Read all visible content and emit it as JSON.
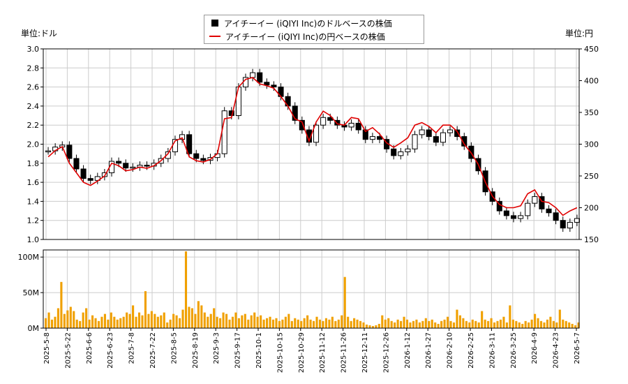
{
  "legend": {
    "usd_label": "アイチーイー (iQIYI Inc)のドルベースの株価",
    "jpy_label": "アイチーイー (iQIYI Inc)の円ベースの株価"
  },
  "units": {
    "left": "単位:ドル",
    "right": "単位:円"
  },
  "colors": {
    "candle": "#000000",
    "jpy_line": "#e00000",
    "volume": "#f0a000",
    "grid": "#cccccc"
  },
  "chart_data": {
    "type": "line",
    "price_axis": {
      "left_ticks": [
        "3.0",
        "2.8",
        "2.6",
        "2.4",
        "2.2",
        "2.0",
        "1.8",
        "1.6",
        "1.4",
        "1.2",
        "1.0"
      ],
      "right_ticks": [
        "450",
        "400",
        "350",
        "300",
        "250",
        "200",
        "150"
      ],
      "ylim_usd": [
        1.0,
        3.0
      ],
      "ylim_jpy": [
        150,
        450
      ]
    },
    "volume_axis": {
      "ticks": [
        "100M",
        "50M",
        "0M"
      ],
      "ylim": [
        0,
        110
      ]
    },
    "x_labels": [
      "2025-5-8",
      "2025-5-22",
      "2025-6-6",
      "2025-6-23",
      "2025-7-8",
      "2025-7-22",
      "2025-8-5",
      "2025-8-19",
      "2025-9-3",
      "2025-9-17",
      "2025-10-1",
      "2025-10-15",
      "2025-10-29",
      "2025-11-12",
      "2025-11-26",
      "2025-12-11",
      "2025-12-26",
      "2026-1-12",
      "2026-1-27",
      "2026-2-10",
      "2026-2-25",
      "2026-3-11",
      "2026-3-25",
      "2026-4-9",
      "2026-4-23",
      "2026-5-7"
    ],
    "usd_close": [
      1.93,
      1.97,
      1.99,
      1.85,
      1.74,
      1.64,
      1.62,
      1.66,
      1.7,
      1.82,
      1.8,
      1.75,
      1.76,
      1.78,
      1.77,
      1.8,
      1.85,
      1.92,
      2.05,
      2.1,
      1.9,
      1.85,
      1.83,
      1.86,
      1.9,
      2.35,
      2.3,
      2.6,
      2.7,
      2.75,
      2.65,
      2.62,
      2.6,
      2.5,
      2.4,
      2.25,
      2.15,
      2.02,
      2.2,
      2.28,
      2.25,
      2.2,
      2.18,
      2.22,
      2.15,
      2.05,
      2.08,
      2.05,
      1.95,
      1.88,
      1.92,
      1.95,
      2.1,
      2.15,
      2.08,
      2.02,
      2.12,
      2.15,
      2.08,
      1.98,
      1.85,
      1.72,
      1.5,
      1.4,
      1.3,
      1.25,
      1.22,
      1.25,
      1.38,
      1.45,
      1.32,
      1.28,
      1.2,
      1.12,
      1.18,
      1.22
    ],
    "jpy_close": [
      280,
      290,
      296,
      270,
      255,
      240,
      235,
      242,
      250,
      270,
      266,
      258,
      260,
      264,
      262,
      266,
      274,
      285,
      305,
      310,
      280,
      274,
      272,
      276,
      285,
      340,
      342,
      390,
      402,
      405,
      395,
      392,
      388,
      375,
      360,
      340,
      335,
      305,
      335,
      352,
      345,
      332,
      330,
      342,
      340,
      320,
      326,
      316,
      302,
      295,
      302,
      310,
      330,
      334,
      328,
      318,
      330,
      330,
      320,
      300,
      286,
      268,
      240,
      218,
      205,
      200,
      200,
      203,
      222,
      228,
      210,
      208,
      200,
      188,
      195,
      200
    ],
    "volume_m": [
      14,
      22,
      12,
      16,
      28,
      65,
      20,
      25,
      30,
      24,
      12,
      10,
      22,
      28,
      12,
      18,
      14,
      10,
      16,
      20,
      12,
      22,
      16,
      12,
      14,
      16,
      22,
      20,
      32,
      16,
      22,
      18,
      52,
      20,
      24,
      20,
      16,
      18,
      22,
      8,
      12,
      20,
      18,
      14,
      26,
      108,
      30,
      28,
      20,
      38,
      32,
      22,
      16,
      20,
      28,
      16,
      14,
      22,
      20,
      12,
      16,
      22,
      14,
      18,
      20,
      12,
      18,
      22,
      16,
      18,
      12,
      14,
      16,
      12,
      14,
      10,
      12,
      16,
      20,
      10,
      14,
      12,
      10,
      14,
      18,
      12,
      10,
      16,
      12,
      10,
      14,
      12,
      16,
      10,
      12,
      18,
      72,
      16,
      10,
      14,
      12,
      10,
      8,
      5,
      4,
      3,
      4,
      6,
      18,
      12,
      14,
      10,
      8,
      12,
      10,
      16,
      12,
      8,
      10,
      12,
      8,
      10,
      14,
      10,
      12,
      8,
      6,
      10,
      12,
      16,
      10,
      8,
      26,
      18,
      14,
      10,
      8,
      12,
      10,
      8,
      24,
      12,
      10,
      14,
      8,
      10,
      12,
      16,
      8,
      32,
      12,
      10,
      8,
      6,
      10,
      8,
      12,
      20,
      14,
      10,
      8,
      12,
      16,
      10,
      8,
      26,
      12,
      10,
      8,
      6,
      4,
      8
    ],
    "grid": true
  }
}
